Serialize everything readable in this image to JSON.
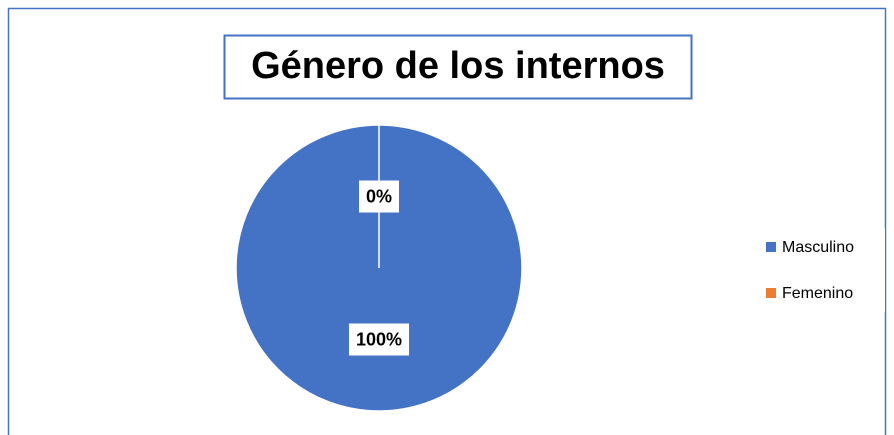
{
  "chart_data": {
    "type": "pie",
    "title": "Género de los internos",
    "categories": [
      "Masculino",
      "Femenino"
    ],
    "values": [
      100,
      0
    ],
    "value_labels": [
      "100%",
      "0%"
    ],
    "colors": [
      "#4472c4",
      "#ed7d31"
    ],
    "legend": "right"
  }
}
